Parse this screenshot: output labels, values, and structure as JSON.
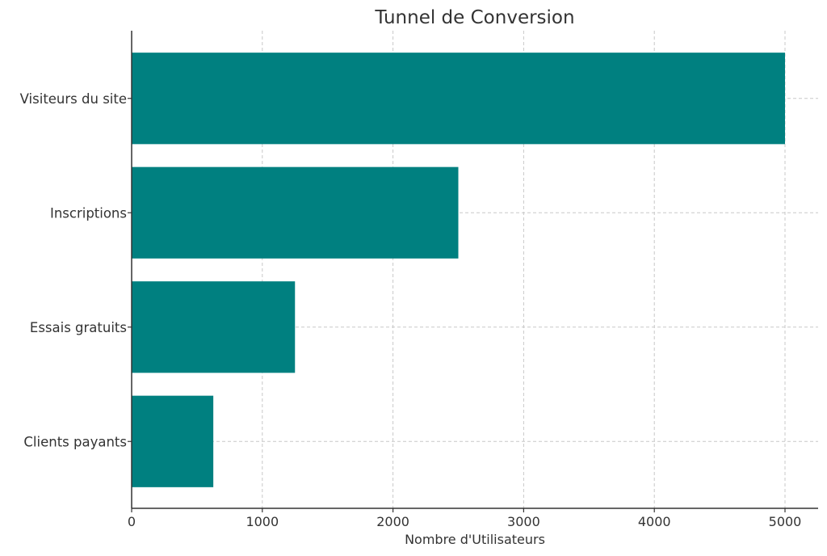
{
  "chart_data": {
    "type": "bar",
    "orientation": "horizontal",
    "title": "Tunnel de Conversion",
    "xlabel": "Nombre d'Utilisateurs",
    "ylabel": "",
    "categories": [
      "Visiteurs du site",
      "Inscriptions",
      "Essais gratuits",
      "Clients payants"
    ],
    "values": [
      5000,
      2500,
      1250,
      625
    ],
    "xlim": [
      0,
      5250
    ],
    "xticks": [
      0,
      1000,
      2000,
      3000,
      4000,
      5000
    ],
    "xtick_labels": [
      "0",
      "1000",
      "2000",
      "3000",
      "4000",
      "5000"
    ],
    "grid": true,
    "bar_color": "#008080"
  }
}
